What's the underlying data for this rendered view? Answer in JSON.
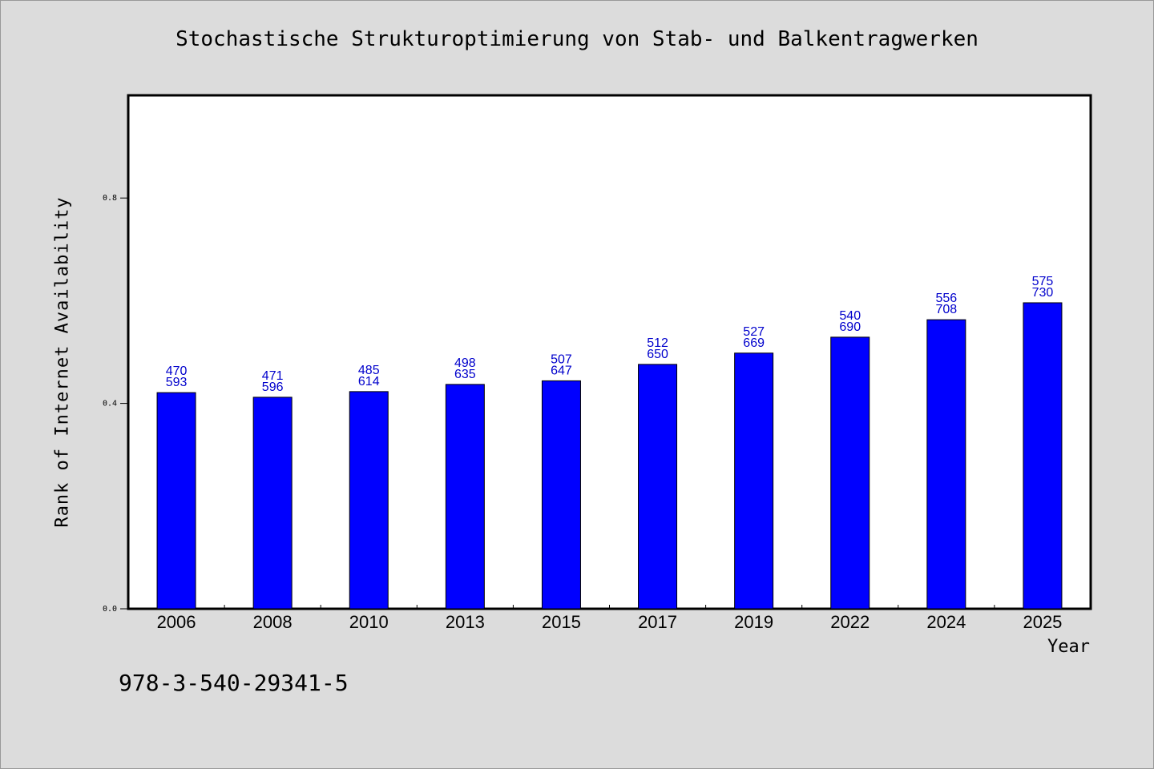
{
  "chart_data": {
    "type": "bar",
    "title": "Stochastische Strukturoptimierung von Stab- und Balkentragwerken",
    "xlabel": "Year",
    "ylabel": "Rank of Internet Availability",
    "categories": [
      "2006",
      "2008",
      "2010",
      "2013",
      "2015",
      "2017",
      "2019",
      "2022",
      "2024",
      "2025"
    ],
    "values": [
      0.421,
      0.412,
      0.423,
      0.437,
      0.444,
      0.476,
      0.498,
      0.529,
      0.563,
      0.596
    ],
    "label_top": [
      "470",
      "471",
      "485",
      "498",
      "507",
      "512",
      "527",
      "540",
      "556",
      "575"
    ],
    "label_bottom": [
      "593",
      "596",
      "614",
      "635",
      "647",
      "650",
      "669",
      "690",
      "708",
      "730"
    ],
    "yticks": [
      0.0,
      0.4,
      0.8
    ],
    "ytick_labels": [
      "0.0",
      "0.4",
      "0.8"
    ],
    "ylim": [
      0,
      1.0
    ],
    "grid": false,
    "bar_color": "#0000ff",
    "label_color": "#0000cc"
  },
  "footer": {
    "isbn": "978-3-540-29341-5"
  }
}
